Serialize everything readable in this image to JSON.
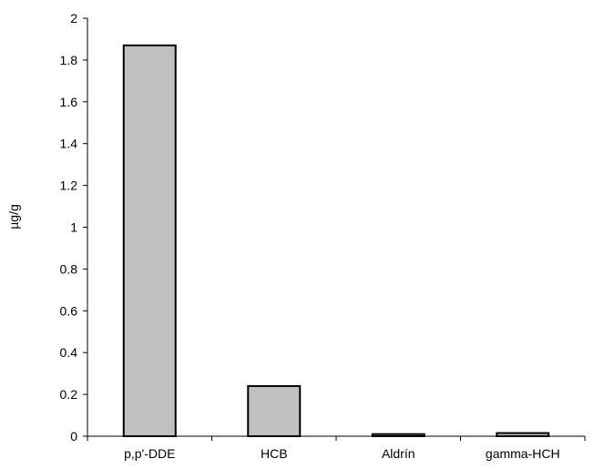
{
  "chart_data": {
    "type": "bar",
    "title": "",
    "xlabel": "",
    "ylabel": "µg/g",
    "categories": [
      "p,p'-DDE",
      "HCB",
      "Aldrín",
      "gamma-HCH"
    ],
    "values": [
      1.87,
      0.24,
      0.01,
      0.015
    ],
    "ylim": [
      0,
      2
    ],
    "yticks": [
      0,
      0.2,
      0.4,
      0.6,
      0.8,
      1,
      1.2,
      1.4,
      1.6,
      1.8,
      2
    ],
    "ytick_labels": [
      "0",
      "0.2",
      "0.4",
      "0.6",
      "0.8",
      "1",
      "1.2",
      "1.4",
      "1.6",
      "1.8",
      "2"
    ],
    "grid": false,
    "legend": "none",
    "bar_color": "#c0c0c0",
    "bar_edge_color": "#000000"
  }
}
